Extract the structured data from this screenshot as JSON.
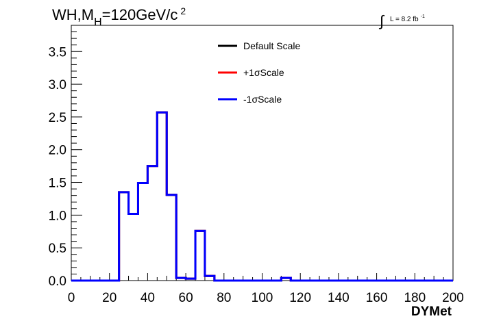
{
  "chart_data": {
    "type": "step-histogram",
    "title": {
      "main": "WH,M",
      "sub": "H",
      "rest": "=120GeV/c",
      "sup": "2"
    },
    "luminosity": {
      "integral": "∫",
      "text": "L = 8.2 fb",
      "sup": "-1"
    },
    "xlabel": "DYMet",
    "ylabel": "",
    "xlim": [
      0,
      200
    ],
    "ylim": [
      0,
      3.9
    ],
    "x_ticks": [
      0,
      20,
      40,
      60,
      80,
      100,
      120,
      140,
      160,
      180,
      200
    ],
    "x_tick_labels": [
      "0",
      "20",
      "40",
      "60",
      "80",
      "100",
      "120",
      "140",
      "160",
      "180",
      "200"
    ],
    "y_ticks": [
      0,
      0.5,
      1.0,
      1.5,
      2.0,
      2.5,
      3.0,
      3.5
    ],
    "y_tick_labels": [
      "0.0",
      "0.5",
      "1.0",
      "1.5",
      "2.0",
      "2.5",
      "3.0",
      "3.5"
    ],
    "bin_edges": [
      0,
      5,
      10,
      15,
      20,
      25,
      30,
      35,
      40,
      45,
      50,
      55,
      60,
      65,
      70,
      75,
      80,
      85,
      90,
      95,
      100,
      105,
      110,
      115,
      120,
      125,
      130,
      135,
      140,
      145,
      150,
      155,
      160,
      165,
      170,
      175,
      180,
      185,
      190,
      195,
      200
    ],
    "series": [
      {
        "name": "Default Scale",
        "color": "#000000",
        "values": [
          0,
          0,
          0,
          0,
          0,
          1.35,
          1.02,
          1.49,
          1.75,
          2.57,
          1.31,
          0.04,
          0.03,
          0.76,
          0.07,
          0,
          0,
          0,
          0,
          0,
          0,
          0,
          0.04,
          0,
          0,
          0,
          0,
          0,
          0,
          0,
          0,
          0,
          0,
          0,
          0,
          0,
          0,
          0,
          0,
          0
        ]
      },
      {
        "name": "+1σScale",
        "color": "#ff0000",
        "values": [
          0,
          0,
          0,
          0,
          0,
          1.35,
          1.02,
          1.49,
          1.75,
          2.57,
          1.31,
          0.04,
          0.03,
          0.76,
          0.07,
          0,
          0,
          0,
          0,
          0,
          0,
          0,
          0.04,
          0,
          0,
          0,
          0,
          0,
          0,
          0,
          0,
          0,
          0,
          0,
          0,
          0,
          0,
          0,
          0,
          0
        ]
      },
      {
        "name": "-1σScale",
        "color": "#0000ff",
        "values": [
          0,
          0,
          0,
          0,
          0,
          1.35,
          1.02,
          1.49,
          1.75,
          2.57,
          1.31,
          0.04,
          0.03,
          0.76,
          0.07,
          0,
          0,
          0,
          0,
          0,
          0,
          0,
          0.04,
          0,
          0,
          0,
          0,
          0,
          0,
          0,
          0,
          0,
          0,
          0,
          0,
          0,
          0,
          0,
          0,
          0
        ]
      }
    ],
    "legend": {
      "placement": "top-center",
      "entries": [
        "Default Scale",
        "+1σScale",
        "-1σScale"
      ]
    }
  }
}
